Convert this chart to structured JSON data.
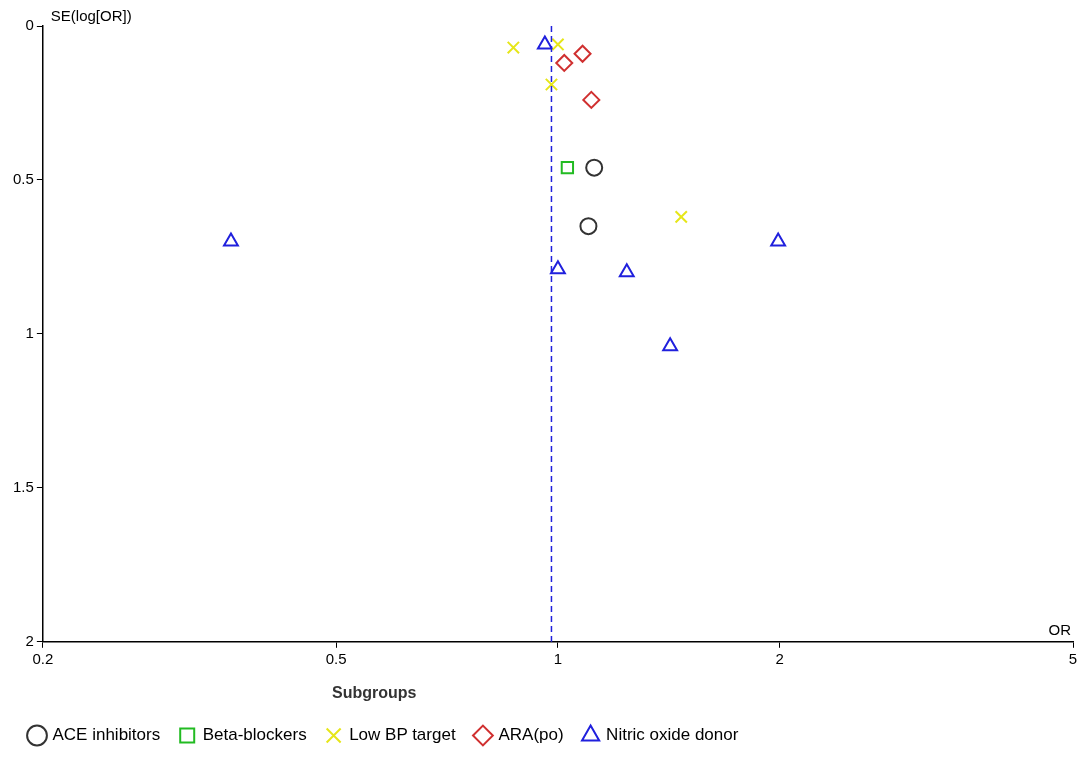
{
  "chart_data": {
    "type": "scatter",
    "xlabel": "OR",
    "ylabel": "SE(log[OR])",
    "legend_title": "Subgroups",
    "legend": "bottom",
    "log": "x",
    "grid": false,
    "xlim": [
      0.2,
      5
    ],
    "xticks": [
      0.2,
      0.5,
      1,
      2,
      5
    ],
    "ylim": [
      2,
      0
    ],
    "yticks": [
      0,
      0.5,
      1,
      1.5,
      2
    ],
    "series": [
      {
        "name": "ACE inhibitors",
        "color": "#333333",
        "marker": "circle",
        "x": [
          1.12,
          1.1
        ],
        "values": [
          0.46,
          0.65
        ]
      },
      {
        "name": "Beta-blockers",
        "color": "#22bb22",
        "marker": "square",
        "x": [
          1.03
        ],
        "values": [
          0.46
        ]
      },
      {
        "name": "Low BP target",
        "color": "#e6e619",
        "marker": "cross",
        "x": [
          0.87,
          1.0,
          0.98,
          1.47
        ],
        "values": [
          0.07,
          0.06,
          0.19,
          0.62
        ]
      },
      {
        "name": "ARA(po)",
        "color": "#d03030",
        "marker": "diamond",
        "x": [
          1.08,
          1.02,
          1.11
        ],
        "values": [
          0.09,
          0.12,
          0.24
        ]
      },
      {
        "name": "Nitric oxide donor",
        "color": "#2020dd",
        "marker": "triangle",
        "x": [
          0.96,
          0.36,
          1.0,
          1.24,
          1.99,
          1.42
        ],
        "values": [
          0.06,
          0.7,
          0.79,
          0.8,
          0.7,
          1.04
        ]
      }
    ],
    "ref_lines": [
      {
        "axis": "x",
        "value": 0.98,
        "color": "#2020dd",
        "line_style": "dashed"
      }
    ]
  }
}
